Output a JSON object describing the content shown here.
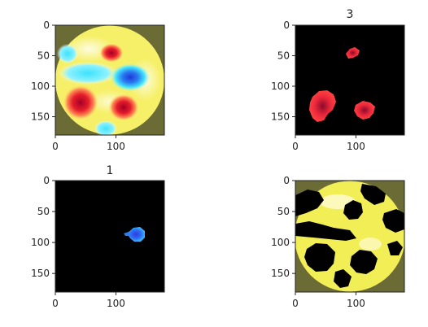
{
  "chart_data": [
    {
      "type": "heatmap",
      "title": "",
      "colormap": "jet",
      "image_shape": [
        180,
        180
      ],
      "xlim": [
        0,
        180
      ],
      "ylim": [
        180,
        0
      ],
      "xticks": [
        0,
        100
      ],
      "yticks": [
        0,
        50,
        100,
        150
      ],
      "background_color": "#6b6b35",
      "content": "circular topographic map: yellow field with red hotspots and cyan/blue cold regions"
    },
    {
      "type": "heatmap",
      "title": "3",
      "xlim": [
        0,
        180
      ],
      "ylim": [
        180,
        0
      ],
      "xticks": [
        0,
        100
      ],
      "yticks": [
        0,
        50,
        100,
        150
      ],
      "background_color": "#000000",
      "content": "red blobs on black (three hotspots)"
    },
    {
      "type": "heatmap",
      "title": "1",
      "xlim": [
        0,
        180
      ],
      "ylim": [
        180,
        0
      ],
      "xticks": [
        0,
        100
      ],
      "yticks": [
        0,
        50,
        100,
        150
      ],
      "background_color": "#000000",
      "content": "single blue blob on black"
    },
    {
      "type": "heatmap",
      "title": "",
      "xlim": [
        0,
        180
      ],
      "ylim": [
        180,
        0
      ],
      "xticks": [
        0,
        100
      ],
      "yticks": [
        0,
        50,
        100,
        150
      ],
      "background_color": "#6b6b35",
      "content": "yellow mask with black holes inside a circle"
    }
  ],
  "colors": {
    "olive": "#6b6b35",
    "yellow": "#f4f05a",
    "pale_yellow": "#fff7c8",
    "red": "#e61e2a",
    "dark_red": "#b0102a",
    "cyan": "#30e4ff",
    "blue": "#2a56e6",
    "black": "#000000"
  }
}
